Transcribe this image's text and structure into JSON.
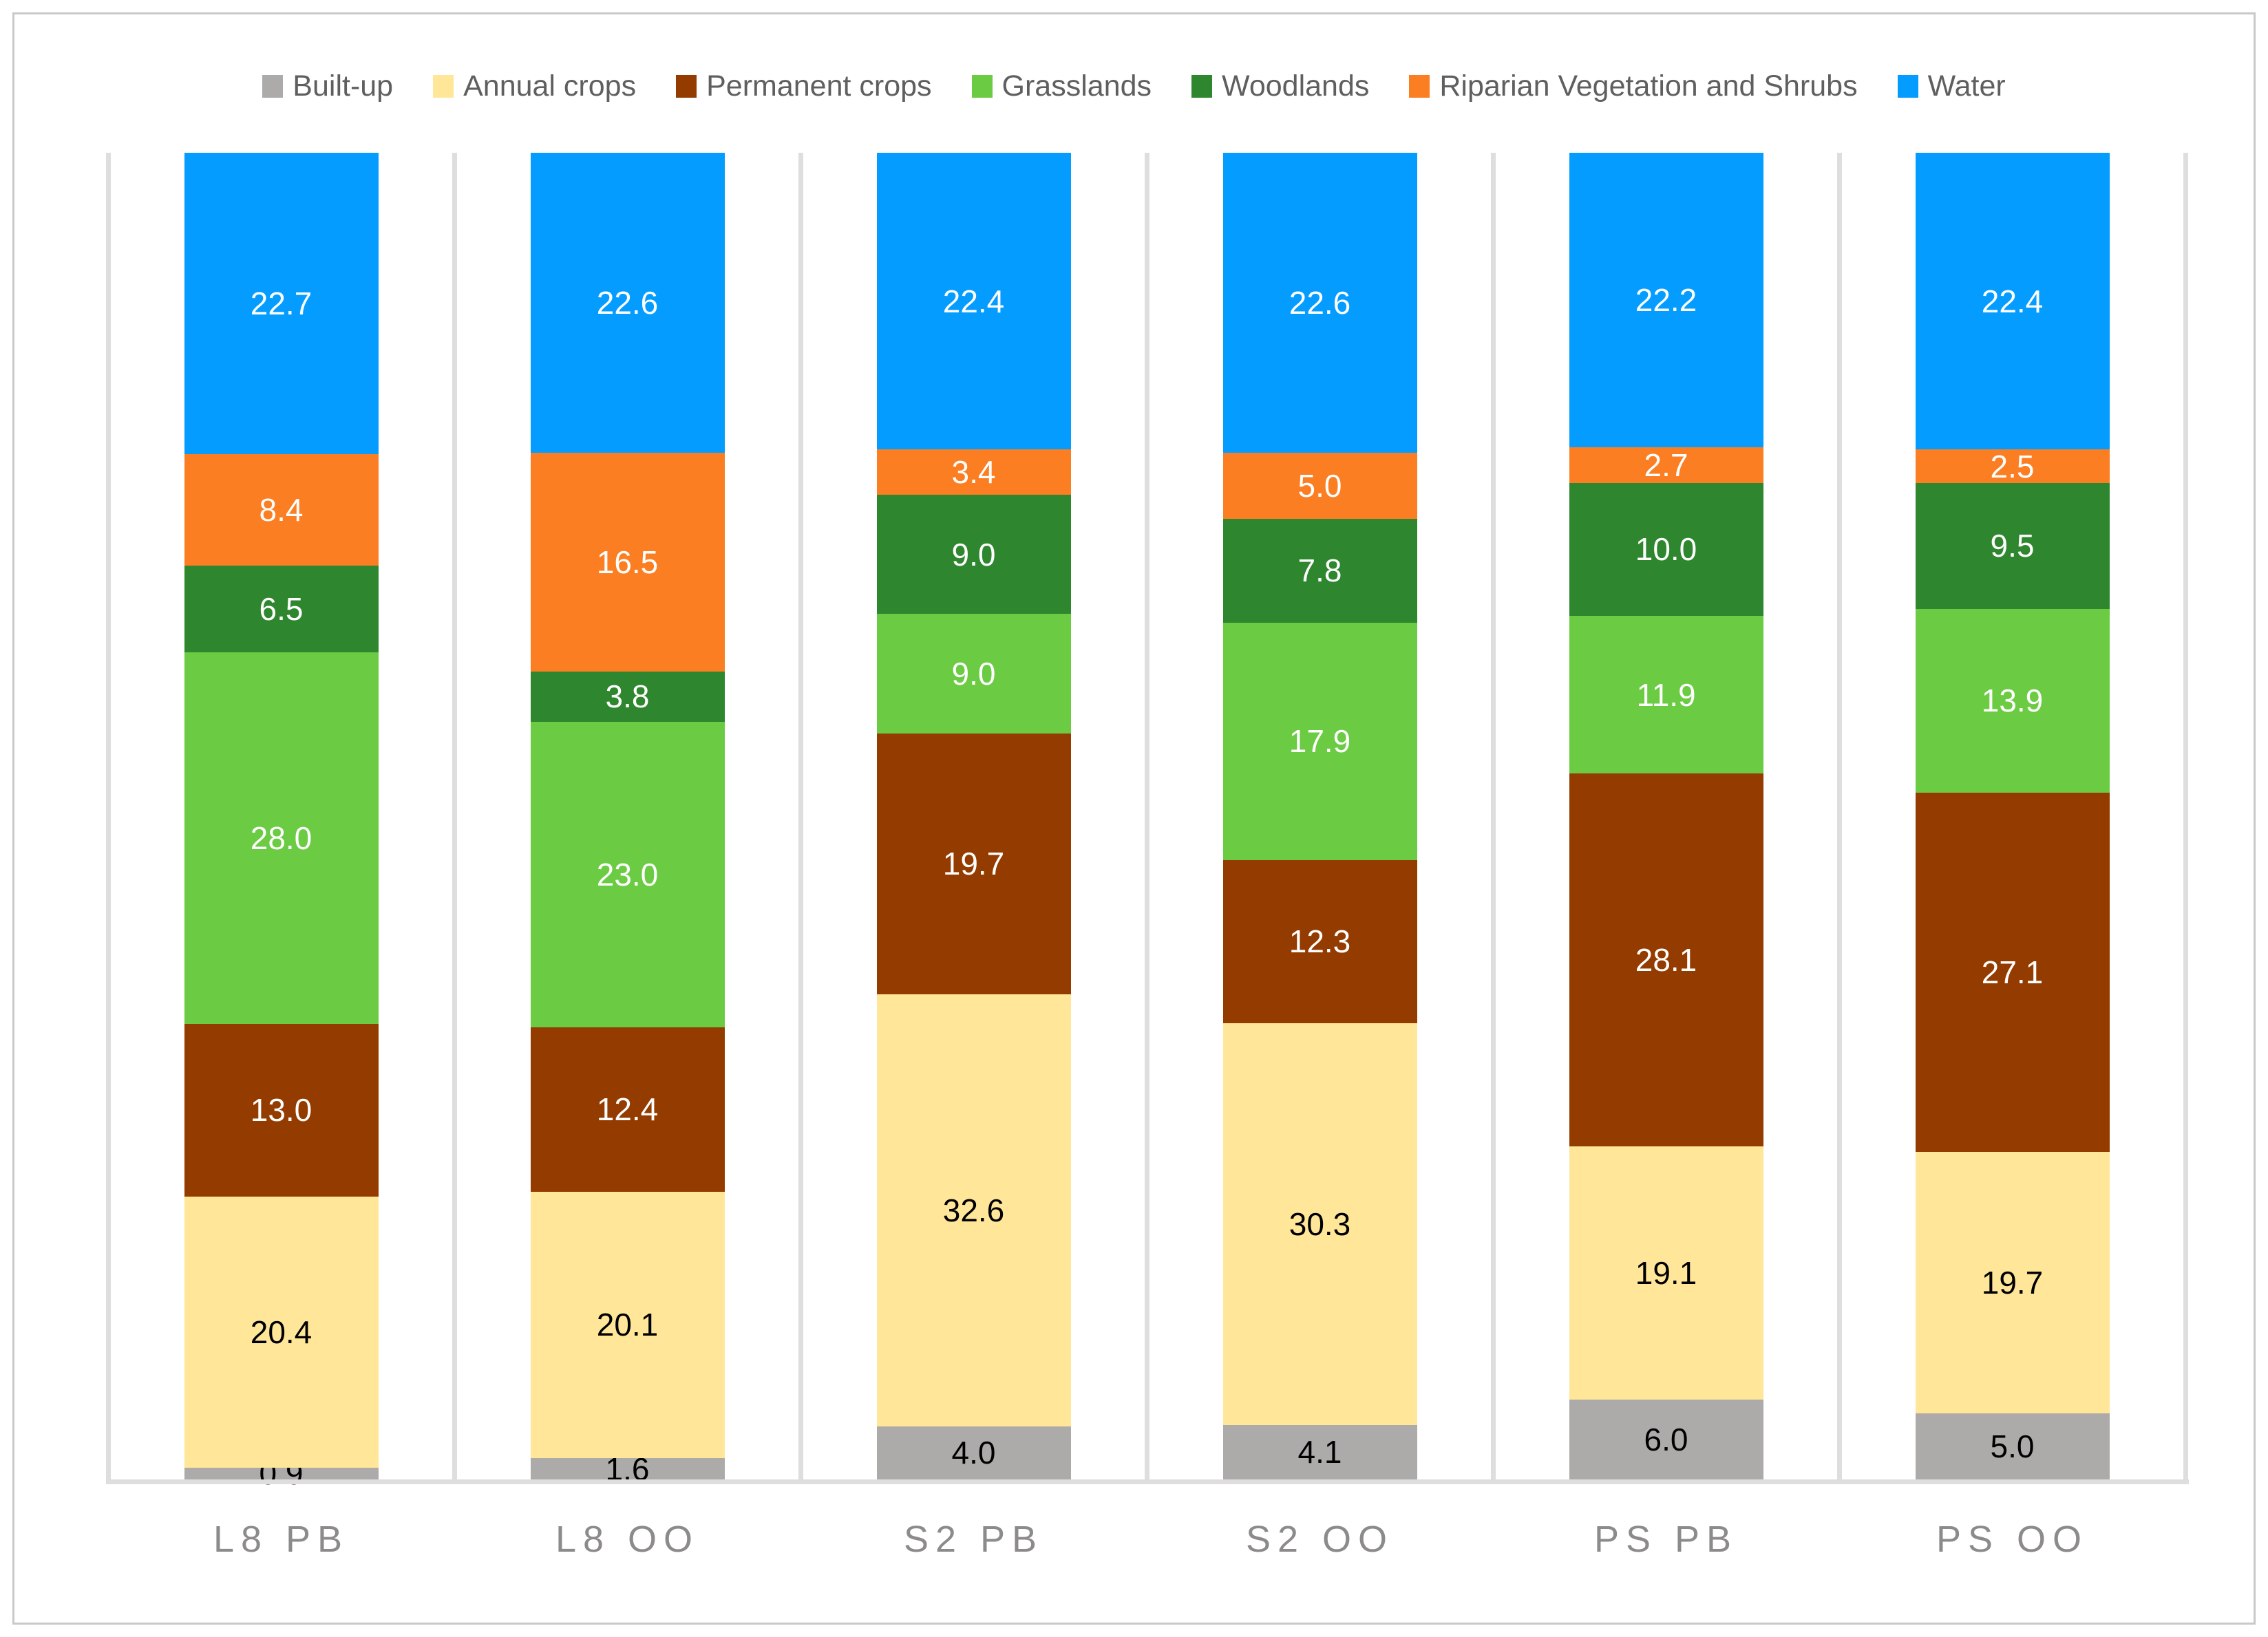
{
  "chart_data": {
    "type": "bar",
    "variant": "stacked-100-percent-column",
    "title": "",
    "xlabel": "",
    "ylabel": "",
    "ylim": [
      0,
      100
    ],
    "legend_position": "top",
    "grid": "vertical-category-separators",
    "value_format": "one-decimal",
    "categories": [
      "L8 PB",
      "L8 OO",
      "S2 PB",
      "S2 OO",
      "PS PB",
      "PS OO"
    ],
    "series": [
      {
        "name": "Built-up",
        "color": "#ADAAAA",
        "label_color": "#000000",
        "values": [
          0.9,
          1.6,
          4.0,
          4.1,
          6.0,
          5.0
        ]
      },
      {
        "name": "Annual crops",
        "color": "#FFE699",
        "label_color": "#000000",
        "values": [
          20.4,
          20.1,
          32.6,
          30.3,
          19.1,
          19.7
        ]
      },
      {
        "name": "Permanent crops",
        "color": "#943B00",
        "label_color": "#FFFFFF",
        "values": [
          13.0,
          12.4,
          19.7,
          12.3,
          28.1,
          27.1
        ]
      },
      {
        "name": "Grasslands",
        "color": "#6BCB43",
        "label_color": "#FFFFFF",
        "values": [
          28.0,
          23.0,
          9.0,
          17.9,
          11.9,
          13.9
        ]
      },
      {
        "name": "Woodlands",
        "color": "#2E862E",
        "label_color": "#FFFFFF",
        "values": [
          6.5,
          3.8,
          9.0,
          7.8,
          10.0,
          9.5
        ]
      },
      {
        "name": "Riparian Vegetation and Shrubs",
        "color": "#FB7E23",
        "label_color": "#FFFFFF",
        "values": [
          8.4,
          16.5,
          3.4,
          5.0,
          2.7,
          2.5
        ]
      },
      {
        "name": "Water",
        "color": "#049DFF",
        "label_color": "#FFFFFF",
        "values": [
          22.7,
          22.6,
          22.4,
          22.6,
          22.2,
          22.4
        ]
      }
    ]
  },
  "colors": {
    "gridline": "#DEDEDE",
    "axis_line": "#DEDEDE",
    "legend_text": "#5F5F5F",
    "axis_label_text": "#8C8A8A",
    "border": "#C9C9C9",
    "background": "#FFFFFF"
  }
}
